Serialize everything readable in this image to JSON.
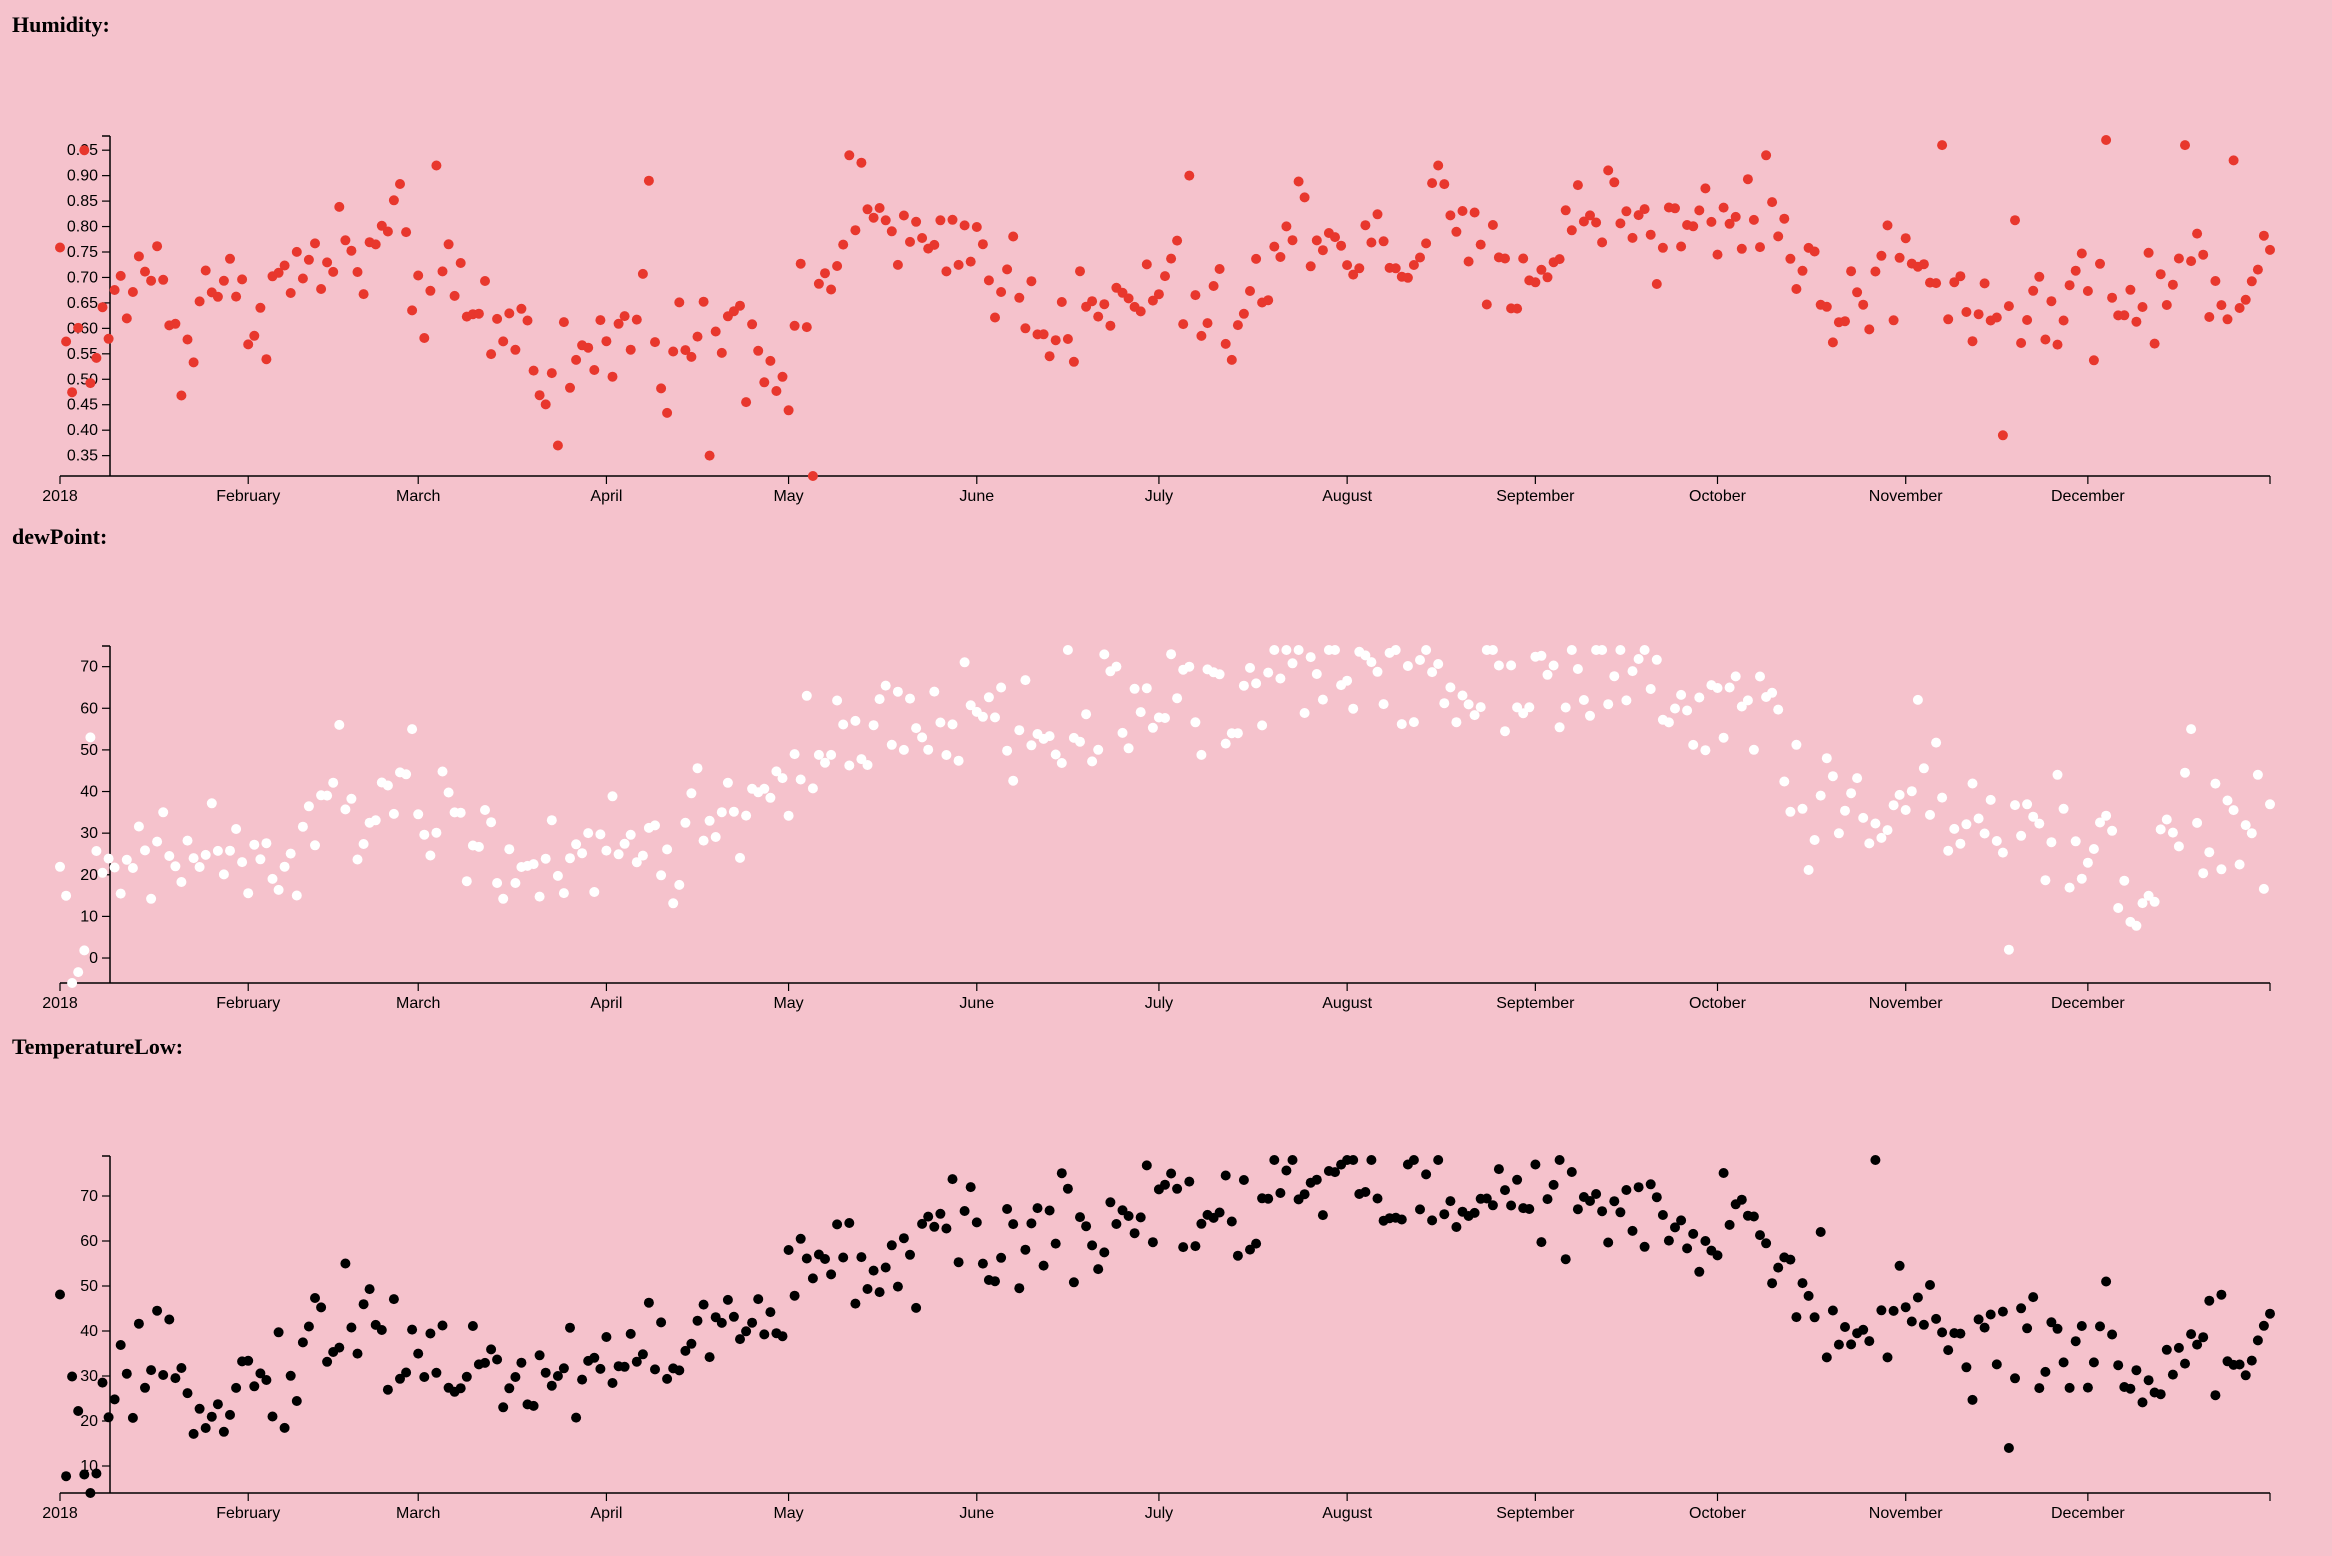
{
  "page": {
    "background": "#f5c2cc"
  },
  "chart_data": [
    {
      "type": "scatter",
      "title": "Humidity:",
      "color": "#e8372d",
      "year": 2018,
      "xlim": [
        "2018-01-01",
        "2018-12-31"
      ],
      "ylim": [
        0.31,
        0.97
      ],
      "yticks": [
        "0.35",
        "0.40",
        "0.45",
        "0.50",
        "0.55",
        "0.60",
        "0.65",
        "0.70",
        "0.75",
        "0.80",
        "0.85",
        "0.90",
        "0.95"
      ],
      "xticks": [
        "2018",
        "February",
        "March",
        "April",
        "May",
        "June",
        "July",
        "August",
        "September",
        "October",
        "November",
        "December"
      ],
      "anchors": [
        [
          1,
          0.58
        ],
        [
          5,
          0.52
        ],
        [
          10,
          0.66
        ],
        [
          15,
          0.74
        ],
        [
          20,
          0.55
        ],
        [
          25,
          0.72
        ],
        [
          30,
          0.62
        ],
        [
          35,
          0.68
        ],
        [
          40,
          0.7
        ],
        [
          45,
          0.75
        ],
        [
          50,
          0.72
        ],
        [
          55,
          0.78
        ],
        [
          60,
          0.68
        ],
        [
          65,
          0.64
        ],
        [
          70,
          0.62
        ],
        [
          75,
          0.6
        ],
        [
          80,
          0.55
        ],
        [
          85,
          0.52
        ],
        [
          90,
          0.56
        ],
        [
          95,
          0.62
        ],
        [
          100,
          0.58
        ],
        [
          105,
          0.56
        ],
        [
          110,
          0.64
        ],
        [
          115,
          0.58
        ],
        [
          120,
          0.52
        ],
        [
          125,
          0.7
        ],
        [
          130,
          0.78
        ],
        [
          135,
          0.82
        ],
        [
          140,
          0.78
        ],
        [
          145,
          0.7
        ],
        [
          150,
          0.78
        ],
        [
          155,
          0.72
        ],
        [
          160,
          0.66
        ],
        [
          165,
          0.62
        ],
        [
          170,
          0.6
        ],
        [
          175,
          0.64
        ],
        [
          180,
          0.68
        ],
        [
          185,
          0.68
        ],
        [
          190,
          0.6
        ],
        [
          195,
          0.62
        ],
        [
          200,
          0.72
        ],
        [
          205,
          0.82
        ],
        [
          210,
          0.78
        ],
        [
          215,
          0.76
        ],
        [
          220,
          0.72
        ],
        [
          225,
          0.8
        ],
        [
          230,
          0.78
        ],
        [
          235,
          0.7
        ],
        [
          240,
          0.72
        ],
        [
          245,
          0.74
        ],
        [
          250,
          0.8
        ],
        [
          255,
          0.86
        ],
        [
          260,
          0.82
        ],
        [
          265,
          0.78
        ],
        [
          270,
          0.8
        ],
        [
          275,
          0.82
        ],
        [
          280,
          0.84
        ],
        [
          285,
          0.78
        ],
        [
          290,
          0.64
        ],
        [
          295,
          0.64
        ],
        [
          300,
          0.7
        ],
        [
          305,
          0.76
        ],
        [
          310,
          0.7
        ],
        [
          315,
          0.66
        ],
        [
          320,
          0.66
        ],
        [
          325,
          0.64
        ],
        [
          330,
          0.68
        ],
        [
          335,
          0.66
        ],
        [
          340,
          0.64
        ],
        [
          345,
          0.66
        ],
        [
          350,
          0.7
        ],
        [
          355,
          0.72
        ],
        [
          360,
          0.7
        ],
        [
          364,
          0.74
        ]
      ],
      "outliers": [
        [
          4,
          0.95
        ],
        [
          62,
          0.92
        ],
        [
          97,
          0.89
        ],
        [
          124,
          0.31
        ],
        [
          130,
          0.94
        ],
        [
          186,
          0.9
        ],
        [
          227,
          0.92
        ],
        [
          281,
          0.94
        ],
        [
          310,
          0.96
        ],
        [
          320,
          0.39
        ],
        [
          337,
          0.97
        ],
        [
          350,
          0.96
        ],
        [
          358,
          0.93
        ],
        [
          107,
          0.35
        ],
        [
          82,
          0.37
        ]
      ]
    },
    {
      "type": "scatter",
      "title": "dewPoint:",
      "color": "#ffffff",
      "year": 2018,
      "xlim": [
        "2018-01-01",
        "2018-12-31"
      ],
      "ylim": [
        -6,
        74
      ],
      "yticks": [
        "0",
        "10",
        "20",
        "30",
        "40",
        "50",
        "60",
        "70"
      ],
      "xticks": [
        "2018",
        "February",
        "March",
        "April",
        "May",
        "June",
        "July",
        "August",
        "September",
        "October",
        "November",
        "December"
      ],
      "anchors": [
        [
          1,
          5
        ],
        [
          6,
          12
        ],
        [
          12,
          22
        ],
        [
          18,
          22
        ],
        [
          24,
          28
        ],
        [
          30,
          22
        ],
        [
          36,
          20
        ],
        [
          42,
          30
        ],
        [
          48,
          34
        ],
        [
          54,
          40
        ],
        [
          60,
          36
        ],
        [
          66,
          30
        ],
        [
          72,
          26
        ],
        [
          78,
          24
        ],
        [
          82,
          16
        ],
        [
          86,
          22
        ],
        [
          90,
          26
        ],
        [
          95,
          28
        ],
        [
          100,
          24
        ],
        [
          105,
          34
        ],
        [
          110,
          32
        ],
        [
          115,
          40
        ],
        [
          120,
          44
        ],
        [
          125,
          46
        ],
        [
          130,
          50
        ],
        [
          135,
          54
        ],
        [
          140,
          52
        ],
        [
          145,
          56
        ],
        [
          150,
          60
        ],
        [
          155,
          56
        ],
        [
          160,
          54
        ],
        [
          165,
          56
        ],
        [
          170,
          58
        ],
        [
          175,
          60
        ],
        [
          180,
          62
        ],
        [
          185,
          66
        ],
        [
          190,
          60
        ],
        [
          195,
          62
        ],
        [
          200,
          68
        ],
        [
          205,
          70
        ],
        [
          210,
          68
        ],
        [
          215,
          70
        ],
        [
          220,
          70
        ],
        [
          225,
          70
        ],
        [
          230,
          66
        ],
        [
          235,
          66
        ],
        [
          240,
          70
        ],
        [
          245,
          70
        ],
        [
          250,
          66
        ],
        [
          255,
          68
        ],
        [
          260,
          66
        ],
        [
          265,
          60
        ],
        [
          270,
          58
        ],
        [
          275,
          60
        ],
        [
          280,
          66
        ],
        [
          285,
          42
        ],
        [
          290,
          34
        ],
        [
          295,
          34
        ],
        [
          300,
          40
        ],
        [
          305,
          40
        ],
        [
          310,
          34
        ],
        [
          315,
          30
        ],
        [
          320,
          30
        ],
        [
          325,
          28
        ],
        [
          330,
          30
        ],
        [
          335,
          30
        ],
        [
          340,
          18
        ],
        [
          345,
          22
        ],
        [
          350,
          34
        ],
        [
          355,
          28
        ],
        [
          360,
          32
        ],
        [
          364,
          30
        ]
      ],
      "outliers": [
        [
          5,
          53
        ],
        [
          46,
          56
        ],
        [
          123,
          63
        ],
        [
          306,
          62
        ],
        [
          321,
          2
        ],
        [
          351,
          55
        ],
        [
          2,
          -6
        ],
        [
          155,
          65
        ],
        [
          183,
          73
        ]
      ]
    },
    {
      "type": "scatter",
      "title": "TemperatureLow:",
      "color": "#000000",
      "year": 2018,
      "xlim": [
        "2018-01-01",
        "2018-12-31"
      ],
      "ylim": [
        4,
        78
      ],
      "yticks": [
        "10",
        "20",
        "30",
        "40",
        "50",
        "60",
        "70"
      ],
      "xticks": [
        "2018",
        "February",
        "March",
        "April",
        "May",
        "June",
        "July",
        "August",
        "September",
        "October",
        "November",
        "December"
      ],
      "anchors": [
        [
          1,
          14
        ],
        [
          6,
          20
        ],
        [
          12,
          26
        ],
        [
          18,
          30
        ],
        [
          24,
          28
        ],
        [
          30,
          28
        ],
        [
          36,
          30
        ],
        [
          42,
          38
        ],
        [
          48,
          40
        ],
        [
          54,
          40
        ],
        [
          60,
          36
        ],
        [
          66,
          32
        ],
        [
          72,
          30
        ],
        [
          78,
          30
        ],
        [
          82,
          30
        ],
        [
          86,
          32
        ],
        [
          90,
          34
        ],
        [
          95,
          36
        ],
        [
          100,
          36
        ],
        [
          105,
          38
        ],
        [
          110,
          40
        ],
        [
          115,
          40
        ],
        [
          120,
          48
        ],
        [
          125,
          54
        ],
        [
          130,
          54
        ],
        [
          135,
          56
        ],
        [
          140,
          58
        ],
        [
          145,
          60
        ],
        [
          150,
          60
        ],
        [
          155,
          58
        ],
        [
          160,
          62
        ],
        [
          165,
          62
        ],
        [
          170,
          64
        ],
        [
          175,
          66
        ],
        [
          180,
          68
        ],
        [
          185,
          70
        ],
        [
          190,
          68
        ],
        [
          195,
          66
        ],
        [
          200,
          72
        ],
        [
          205,
          72
        ],
        [
          210,
          74
        ],
        [
          215,
          72
        ],
        [
          220,
          72
        ],
        [
          225,
          72
        ],
        [
          230,
          66
        ],
        [
          235,
          68
        ],
        [
          240,
          74
        ],
        [
          245,
          68
        ],
        [
          250,
          66
        ],
        [
          255,
          66
        ],
        [
          260,
          64
        ],
        [
          265,
          60
        ],
        [
          270,
          58
        ],
        [
          275,
          62
        ],
        [
          280,
          66
        ],
        [
          285,
          50
        ],
        [
          290,
          42
        ],
        [
          295,
          42
        ],
        [
          300,
          44
        ],
        [
          305,
          46
        ],
        [
          310,
          40
        ],
        [
          315,
          36
        ],
        [
          320,
          32
        ],
        [
          325,
          38
        ],
        [
          330,
          36
        ],
        [
          335,
          38
        ],
        [
          340,
          28
        ],
        [
          345,
          30
        ],
        [
          350,
          38
        ],
        [
          355,
          36
        ],
        [
          360,
          38
        ],
        [
          364,
          40
        ]
      ],
      "outliers": [
        [
          299,
          86
        ],
        [
          5,
          4
        ],
        [
          47,
          55
        ],
        [
          183,
          75
        ],
        [
          243,
          77
        ],
        [
          321,
          14
        ],
        [
          337,
          51
        ],
        [
          120,
          58
        ],
        [
          290,
          62
        ]
      ]
    }
  ]
}
